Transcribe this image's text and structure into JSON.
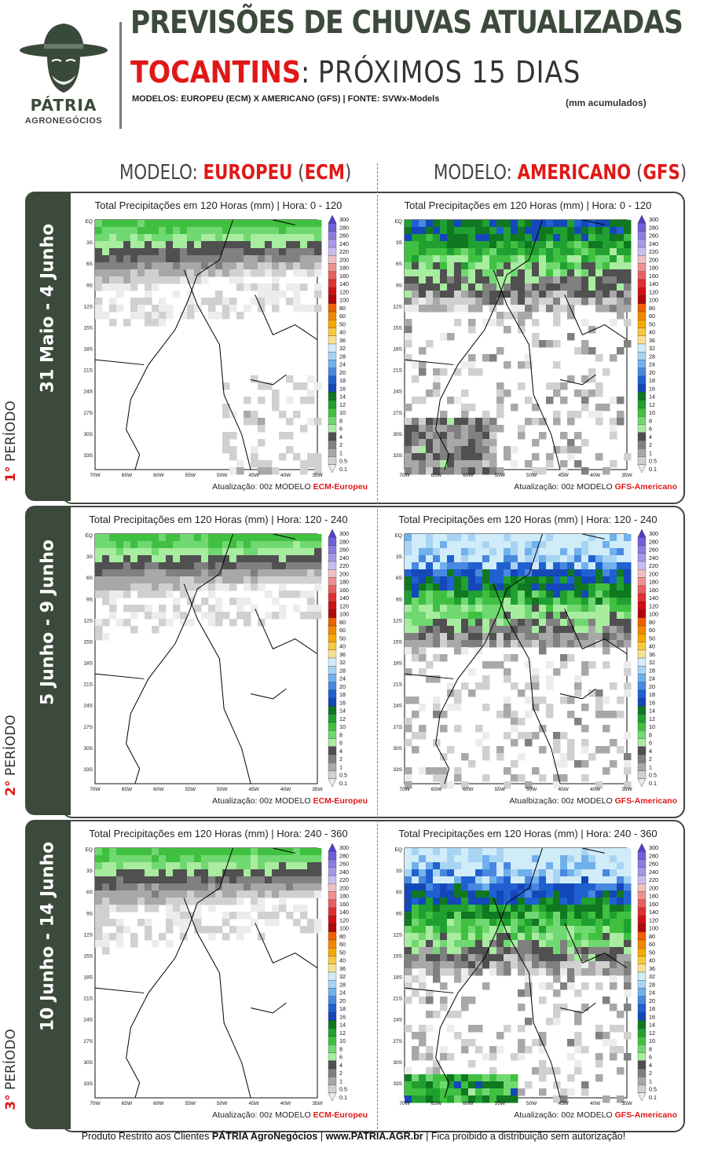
{
  "header": {
    "title": "PREVISÕES DE CHUVAS ATUALIZADAS",
    "state": "TOCANTINS",
    "separator": ":",
    "horizon": "PRÓXIMOS 15 DIAS",
    "models_line": "MODELOS: EUROPEU (ECM) X AMERICANO (GFS)  |  FONTE: SVWx-Models",
    "units": "(mm acumulados)"
  },
  "logo": {
    "name": "PÁTRIA",
    "subname": "AGRONEGÓCIOS",
    "icon": "farmer-hat-face-icon"
  },
  "columns": [
    {
      "prefix": "MODELO:",
      "name": "EUROPEU",
      "abbr": "ECM",
      "color": "#e01818"
    },
    {
      "prefix": "MODELO:",
      "name": "AMERICANO",
      "abbr": "GFS",
      "color": "#e01818"
    }
  ],
  "periods": [
    {
      "ordinal": "1°",
      "label": "PERÍODO",
      "dates": "31 Maio - 4 Junho",
      "maps": [
        {
          "title": "Total Precipitações em 120 Horas (mm)   |   Hora: 0 - 120",
          "update": "Atualização: 00z MODELO",
          "model": "ECM-Europeu"
        },
        {
          "title": "Total Precipitações em 120 Horas (mm)   |   Hora: 0 - 120",
          "update": "Atualização: 00z MODELO",
          "model": "GFS-Americano"
        }
      ]
    },
    {
      "ordinal": "2°",
      "label": "PERÍODO",
      "dates": "5 Junho - 9 Junho",
      "maps": [
        {
          "title": "Total Precipitações em 120 Horas (mm)   |   Hora: 120 - 240",
          "update": "Atualização: 00z MODELO",
          "model": "ECM-Europeu"
        },
        {
          "title": "Total Precipitações em 120 Horas (mm)   |   Hora: 120 - 240",
          "update": "Atualbização: 00z MODELO",
          "model": "GFS-Americano"
        }
      ]
    },
    {
      "ordinal": "3°",
      "label": "PERÍODO",
      "dates": "10 Junho - 14 Junho",
      "maps": [
        {
          "title": "Total Precipitações em 120 Horas (mm)   |   Hora: 240 - 360",
          "update": "Atualização: 00z MODELO",
          "model": "ECM-Europeu"
        },
        {
          "title": "Total Precipitações em 120 Horas (mm)   |   Hora: 240 - 360",
          "update": "Atualização: 00z MODELO",
          "model": "GFS-Americano"
        }
      ]
    }
  ],
  "map_axes": {
    "lat_labels": [
      "EQ",
      "3S",
      "6S",
      "9S",
      "12S",
      "15S",
      "18S",
      "21S",
      "24S",
      "27S",
      "30S",
      "33S"
    ],
    "lon_labels": [
      "70W",
      "65W",
      "60W",
      "55W",
      "50W",
      "45W",
      "40W",
      "35W"
    ]
  },
  "colorbar": {
    "levels": [
      "300",
      "280",
      "260",
      "240",
      "220",
      "200",
      "180",
      "160",
      "140",
      "120",
      "100",
      "80",
      "60",
      "50",
      "40",
      "36",
      "32",
      "28",
      "24",
      "20",
      "18",
      "16",
      "14",
      "12",
      "10",
      "8",
      "6",
      "4",
      "2",
      "1",
      "0.5",
      "0.1"
    ],
    "colors": [
      "#5040c8",
      "#7060d8",
      "#8c7ce0",
      "#a898e8",
      "#c8bcf0",
      "#f0c0c0",
      "#f09090",
      "#e86060",
      "#e03030",
      "#d01010",
      "#b00808",
      "#f06000",
      "#f08800",
      "#f8a800",
      "#f8c840",
      "#f8e090",
      "#d0ecf8",
      "#a8d4f4",
      "#70b0ec",
      "#4888e0",
      "#2060d0",
      "#1448b8",
      "#107820",
      "#20a030",
      "#40c040",
      "#70d870",
      "#a8eca0",
      "#505050",
      "#808080",
      "#a8a8a8",
      "#d0d0d0",
      "#ececec"
    ]
  },
  "footer": {
    "prefix": "Produto Restrito aos Clientes",
    "brand": "PÁTRIA AgroNegócios",
    "sep1": "|",
    "site": "www.PATRIA.AGR.br",
    "sep2": "|",
    "notice": "Fica proibido a distribuição sem autorização!"
  }
}
